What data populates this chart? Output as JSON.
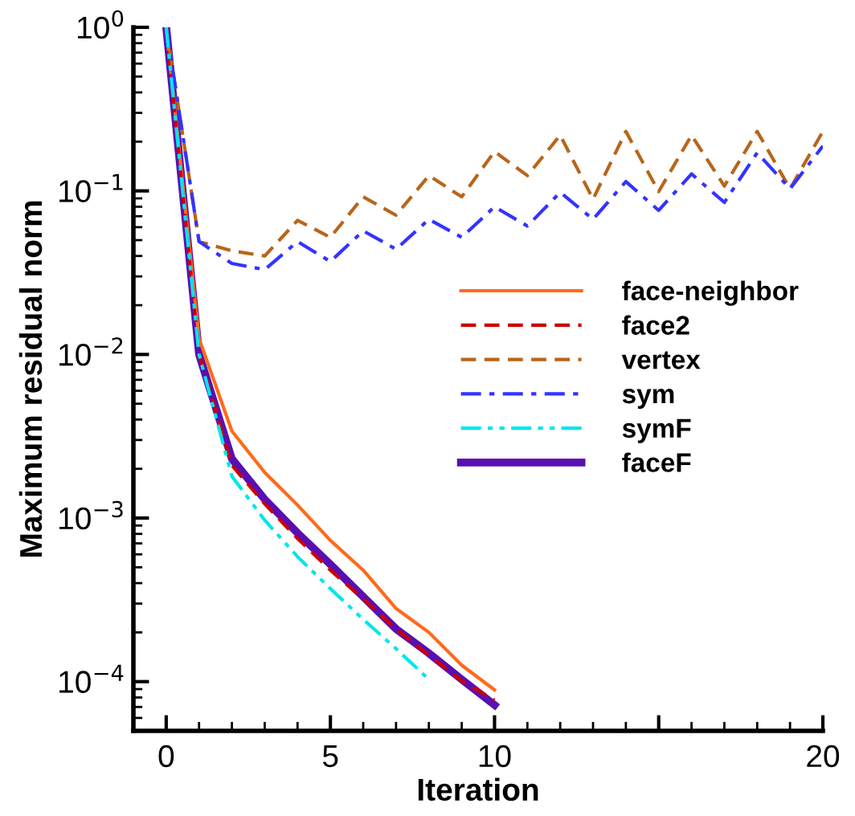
{
  "chart_data": {
    "type": "line",
    "xlabel": "Iteration",
    "ylabel": "Maximum residual norm",
    "log": "y",
    "xlim": [
      -1,
      20
    ],
    "ylim": [
      5e-05,
      1
    ],
    "xticks": [
      0,
      5,
      10,
      {
        "value": 15,
        "label": null
      },
      20
    ],
    "yticks": [
      {
        "value": 0.0001,
        "label": "10$^{−4}$"
      },
      {
        "value": 0.001,
        "label": "10$^{−3}$"
      },
      {
        "value": 0.01,
        "label": "10$^{−2}$"
      },
      {
        "value": 0.1,
        "label": "10$^{−1}$"
      },
      {
        "value": 1,
        "label": "10$^{0}$"
      }
    ],
    "grid": false,
    "legend": "right",
    "marker": "none",
    "series": [
      {
        "name": "face-neighbor",
        "color": "#ff6a1a",
        "line_style": "solid",
        "x": [
          0,
          1,
          2,
          3,
          4,
          5,
          6,
          7,
          8,
          9,
          10
        ],
        "values": [
          1,
          0.0125,
          0.0034,
          0.0019,
          0.0012,
          0.00073,
          0.00048,
          0.00028,
          0.0002,
          0.000126,
          8.9e-05
        ]
      },
      {
        "name": "face2",
        "color": "#cc0000",
        "line_style": "dashed",
        "x": [
          0,
          1,
          2,
          3,
          4,
          5,
          6,
          7,
          8,
          9,
          10
        ],
        "values": [
          1,
          0.01,
          0.0021,
          0.00122,
          0.00075,
          0.00048,
          0.00032,
          0.00021,
          0.000145,
          0.000101,
          7.7e-05
        ]
      },
      {
        "name": "vertex",
        "color": "#b8651a",
        "line_style": "dashed",
        "x": [
          0,
          1,
          2,
          3,
          4,
          5,
          6,
          7,
          8,
          9,
          10,
          11,
          12,
          13,
          14,
          15,
          16,
          17,
          18,
          19,
          20
        ],
        "values": [
          1,
          0.049,
          0.043,
          0.04,
          0.066,
          0.052,
          0.092,
          0.071,
          0.124,
          0.092,
          0.174,
          0.124,
          0.219,
          0.089,
          0.231,
          0.099,
          0.219,
          0.107,
          0.231,
          0.103,
          0.231
        ]
      },
      {
        "name": "sym",
        "color": "#3333ff",
        "line_style": "dashdot",
        "x": [
          0,
          1,
          2,
          3,
          4,
          5,
          6,
          7,
          8,
          9,
          10,
          11,
          12,
          13,
          14,
          15,
          16,
          17,
          18,
          19,
          20
        ],
        "values": [
          1,
          0.049,
          0.036,
          0.033,
          0.049,
          0.037,
          0.057,
          0.044,
          0.067,
          0.052,
          0.08,
          0.061,
          0.098,
          0.067,
          0.114,
          0.076,
          0.127,
          0.085,
          0.171,
          0.103,
          0.188
        ]
      },
      {
        "name": "symF",
        "color": "#00e5ee",
        "line_style": "dashdotdot",
        "x": [
          0,
          1,
          2,
          3,
          4,
          5,
          6,
          7,
          8
        ],
        "values": [
          1,
          0.01,
          0.0018,
          0.00097,
          0.00058,
          0.00037,
          0.00024,
          0.000159,
          0.000103
        ]
      },
      {
        "name": "faceF",
        "color": "#5a0fb0",
        "line_style": "solid",
        "x": [
          0,
          1,
          2,
          3,
          4,
          5,
          6,
          7,
          8,
          9,
          10
        ],
        "values": [
          1,
          0.01,
          0.0023,
          0.0013,
          0.00081,
          0.00052,
          0.00033,
          0.00021,
          0.000149,
          0.000103,
          7.2e-05
        ]
      }
    ]
  }
}
